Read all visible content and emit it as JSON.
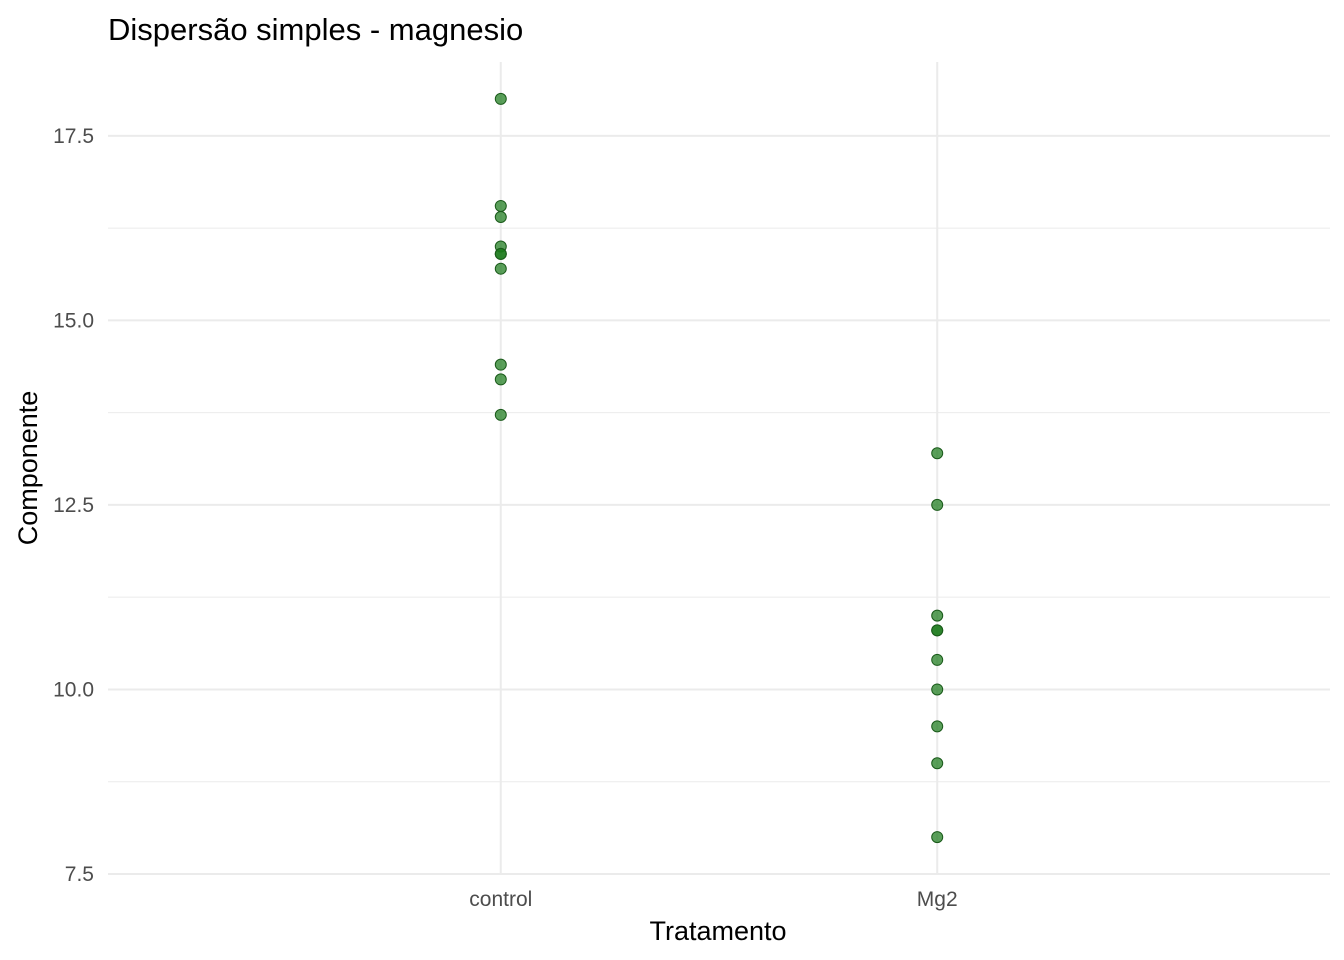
{
  "chart_data": {
    "type": "scatter",
    "title": "Dispersão simples - magnesio",
    "xlabel": "Tratamento",
    "ylabel": "Componente",
    "categories": [
      "control",
      "Mg2"
    ],
    "ylim": [
      7.5,
      18.5
    ],
    "yticks": [
      "7.5",
      "10.0",
      "12.5",
      "15.0",
      "17.5"
    ],
    "grid": true,
    "legend": "none",
    "point_color": "#1b7a1b",
    "series": [
      {
        "category": "control",
        "values": [
          18.0,
          16.55,
          16.4,
          16.0,
          15.9,
          15.9,
          15.7,
          14.4,
          14.2,
          13.72
        ]
      },
      {
        "category": "Mg2",
        "values": [
          13.2,
          12.5,
          11.0,
          10.8,
          10.8,
          10.4,
          10.0,
          9.5,
          9.0,
          8.0
        ]
      }
    ]
  }
}
